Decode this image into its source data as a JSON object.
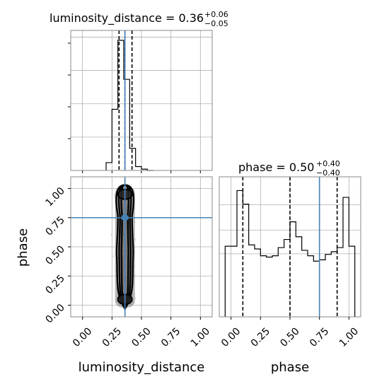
{
  "chart_data": {
    "type": "corner",
    "colors": {
      "truth": "#4682b4",
      "hist": "#000000",
      "grid": "#b0b0b0",
      "points": "#444444"
    },
    "grid": true,
    "params": [
      {
        "name": "luminosity_distance",
        "axis_label": "luminosity_distance",
        "median": "0.36",
        "plus": "+0.06",
        "minus": "−0.05",
        "title_prefix": "luminosity_distance = ",
        "range": [
          -0.1,
          1.1
        ],
        "truth": 0.36,
        "quantiles": [
          0.31,
          0.36,
          0.42
        ]
      },
      {
        "name": "phase",
        "axis_label": "phase",
        "median": "0.50",
        "plus": "+0.40",
        "minus": "−0.40",
        "title_prefix": "phase = ",
        "range": [
          -0.1,
          1.1
        ],
        "truth": 0.75,
        "quantiles": [
          0.1,
          0.5,
          0.9
        ]
      }
    ],
    "ticks": [
      0.0,
      0.25,
      0.5,
      0.75,
      1.0
    ],
    "tick_labels": [
      "0.00",
      "0.25",
      "0.50",
      "0.75",
      "1.00"
    ],
    "hist_1d_luminosity_distance": {
      "edges": [
        0.2,
        0.25,
        0.3,
        0.35,
        0.4,
        0.45,
        0.5,
        0.55,
        0.6
      ],
      "counts": [
        0.06,
        0.47,
        1.0,
        0.7,
        0.17,
        0.03,
        0.01,
        0.0
      ]
    },
    "hist_1d_phase": {
      "edges": [
        -0.05,
        0.0,
        0.05,
        0.1,
        0.15,
        0.2,
        0.25,
        0.3,
        0.35,
        0.4,
        0.45,
        0.5,
        0.55,
        0.6,
        0.65,
        0.7,
        0.75,
        0.8,
        0.85,
        0.9,
        0.95,
        1.0,
        1.05
      ],
      "counts": [
        0.52,
        0.52,
        0.93,
        0.83,
        0.53,
        0.5,
        0.45,
        0.44,
        0.45,
        0.51,
        0.57,
        0.7,
        0.59,
        0.49,
        0.45,
        0.41,
        0.42,
        0.46,
        0.48,
        0.51,
        0.88,
        0.52
      ]
    },
    "hist_2d": {
      "x_center": 0.36,
      "y_dense_bands": [
        0.05,
        0.5,
        0.95
      ]
    }
  }
}
